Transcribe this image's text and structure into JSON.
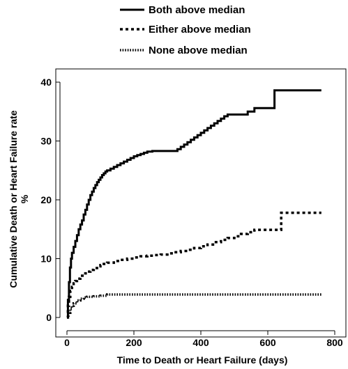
{
  "chart_data": {
    "type": "line",
    "step": true,
    "xlabel": "Time to Death or Heart Failure (days)",
    "ylabel_line1": "Cumulative Death or Heart Failure rate",
    "ylabel_line2": "%",
    "xlim": [
      -20,
      810
    ],
    "ylim": [
      -1.5,
      41.5
    ],
    "xticks": [
      0,
      200,
      400,
      600,
      800
    ],
    "yticks": [
      0,
      10,
      20,
      30,
      40
    ],
    "legend_position": "top",
    "colors": {
      "line": "#000000",
      "frame": "#000000"
    },
    "series": [
      {
        "name": "Both above median",
        "style": "solid",
        "x": [
          0,
          3,
          6,
          9,
          12,
          15,
          20,
          25,
          30,
          35,
          40,
          45,
          50,
          55,
          60,
          65,
          70,
          75,
          80,
          85,
          90,
          95,
          100,
          105,
          110,
          115,
          120,
          130,
          140,
          150,
          160,
          170,
          180,
          190,
          200,
          210,
          220,
          230,
          240,
          255,
          270,
          290,
          310,
          330,
          340,
          350,
          360,
          370,
          380,
          390,
          400,
          410,
          420,
          430,
          440,
          450,
          460,
          470,
          480,
          500,
          520,
          540,
          560,
          580,
          600,
          620,
          640,
          660,
          680,
          700,
          720,
          740,
          760
        ],
        "y": [
          0,
          3,
          6,
          8.5,
          10,
          11,
          12,
          13,
          14,
          15,
          15.8,
          16.5,
          17.5,
          18.3,
          19.2,
          20,
          20.8,
          21.4,
          22,
          22.5,
          23,
          23.4,
          23.8,
          24.2,
          24.5,
          24.8,
          25,
          25.3,
          25.6,
          25.9,
          26.2,
          26.5,
          26.8,
          27.1,
          27.4,
          27.6,
          27.8,
          28,
          28.2,
          28.3,
          28.3,
          28.3,
          28.3,
          28.6,
          29,
          29.4,
          29.8,
          30.2,
          30.6,
          31,
          31.4,
          31.8,
          32.2,
          32.6,
          33,
          33.4,
          33.8,
          34.2,
          34.5,
          34.5,
          34.5,
          35,
          35.6,
          35.6,
          35.6,
          38.6,
          38.6,
          38.6,
          38.6,
          38.6,
          38.6,
          38.6,
          38.6
        ]
      },
      {
        "name": "Either above median",
        "style": "dashed",
        "x": [
          0,
          3,
          6,
          10,
          15,
          20,
          25,
          30,
          40,
          50,
          60,
          70,
          80,
          90,
          100,
          110,
          120,
          140,
          160,
          180,
          200,
          220,
          240,
          260,
          280,
          300,
          320,
          340,
          360,
          380,
          400,
          420,
          440,
          460,
          480,
          500,
          520,
          540,
          560,
          580,
          600,
          620,
          640,
          660,
          700,
          740,
          760
        ],
        "y": [
          0,
          2,
          3.5,
          4.5,
          5.2,
          5.8,
          6.2,
          6.6,
          7.1,
          7.5,
          7.8,
          8.1,
          8.4,
          8.7,
          8.9,
          9.1,
          9.3,
          9.6,
          9.8,
          10,
          10.2,
          10.4,
          10.5,
          10.6,
          10.7,
          10.9,
          11.1,
          11.3,
          11.5,
          11.8,
          12.1,
          12.4,
          12.8,
          13.2,
          13.5,
          13.8,
          14.2,
          14.5,
          14.9,
          14.9,
          14.9,
          14.9,
          17.8,
          17.8,
          17.8,
          17.8,
          17.8
        ]
      },
      {
        "name": "None above median",
        "style": "dotted",
        "x": [
          0,
          5,
          10,
          15,
          20,
          30,
          40,
          50,
          60,
          80,
          100,
          120,
          140,
          200,
          300,
          400,
          500,
          600,
          700,
          760
        ],
        "y": [
          0,
          0.8,
          1.5,
          2,
          2.4,
          2.9,
          3.2,
          3.4,
          3.5,
          3.6,
          3.7,
          3.9,
          3.9,
          3.9,
          3.9,
          3.9,
          3.9,
          3.9,
          3.9,
          3.9
        ]
      }
    ]
  }
}
